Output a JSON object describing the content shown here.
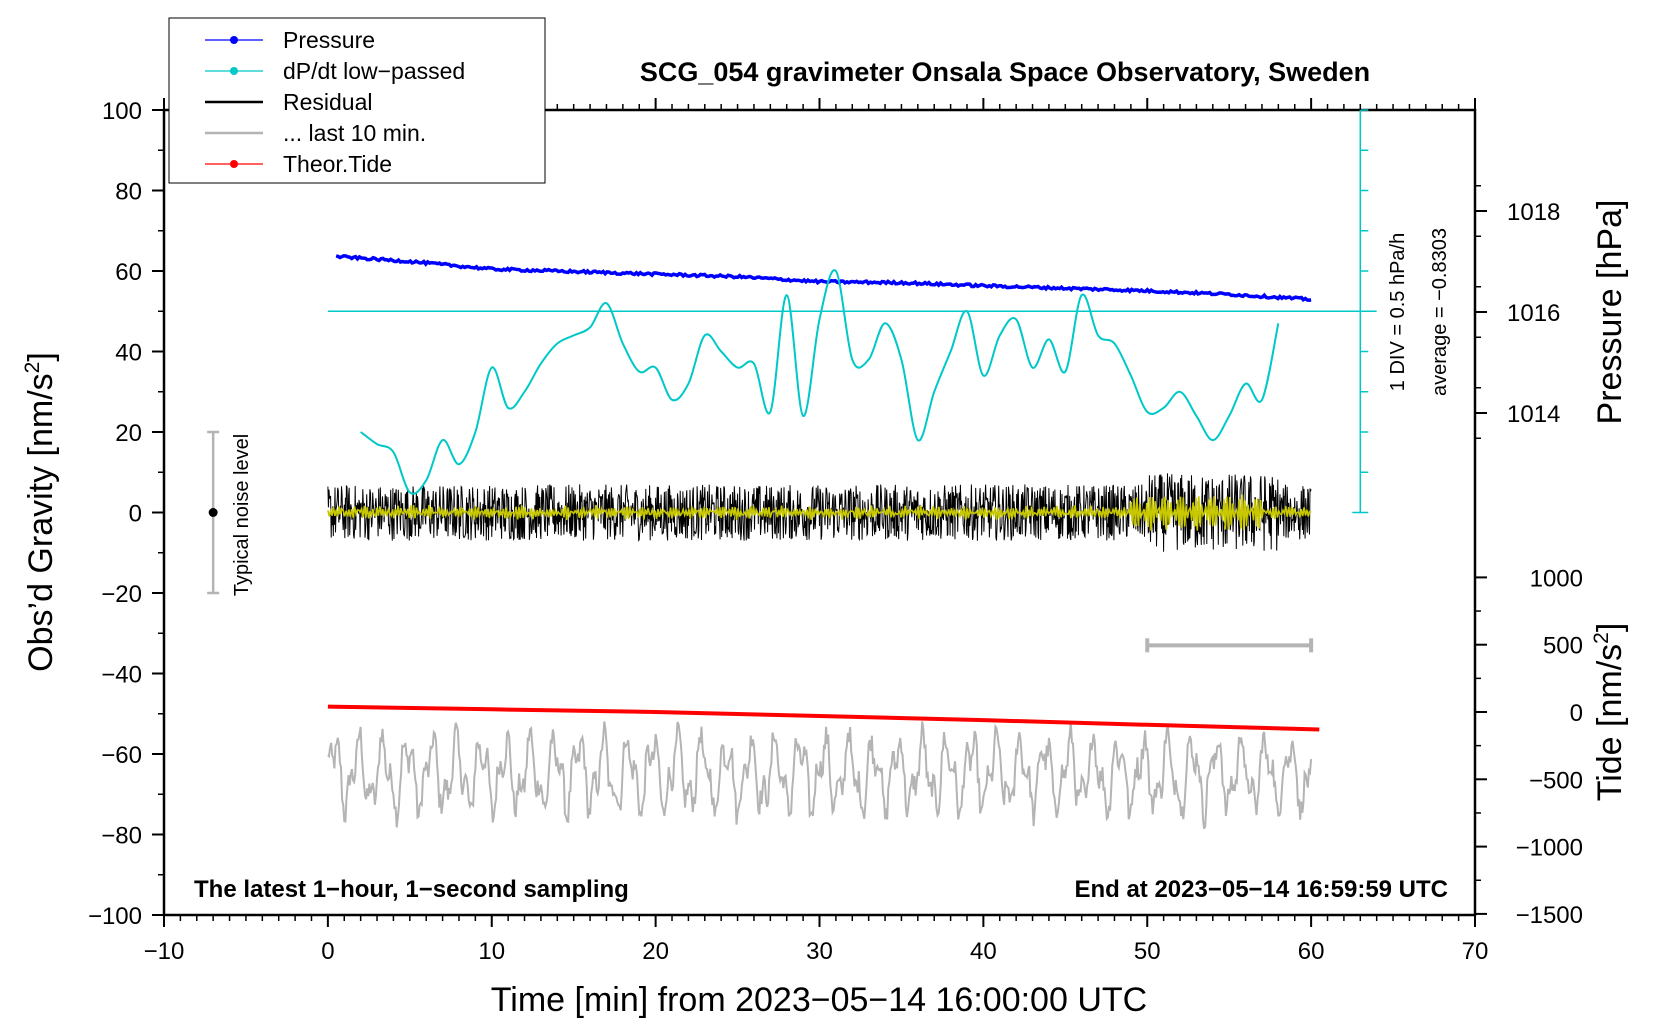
{
  "chart_data": {
    "type": "line",
    "title": "SCG_054 gravimeter Onsala Space Observatory, Sweden",
    "xlabel": "Time [min] from 2023−05−14 16:00:00 UTC",
    "ylabel": "Obs’d Gravity [nm/s2]",
    "ylabel_main": "Obs’d Gravity [nm/s",
    "ylabel_sup": "2",
    "ylabel_close": "]",
    "pressure_label": "Pressure [hPa]",
    "tide_label_main": "Tide [nm/s",
    "tide_label_sup": "2",
    "tide_label_close": "]",
    "xlim": [
      -10,
      70
    ],
    "ylim": [
      -100,
      100
    ],
    "x_ticks": [
      "−10",
      "0",
      "10",
      "20",
      "30",
      "40",
      "50",
      "60",
      "70"
    ],
    "y_ticks": [
      "100",
      "80",
      "60",
      "40",
      "20",
      "0",
      "−20",
      "−40",
      "−60",
      "−80",
      "−100"
    ],
    "pressure_ticks": [
      "1018",
      "1016",
      "1014"
    ],
    "tide_ticks": [
      "1000",
      "500",
      "0",
      "−500",
      "−1000",
      "−1500"
    ],
    "legend": [
      {
        "label": "Pressure",
        "color": "#0000ff",
        "marker": true
      },
      {
        "label": "dP/dt low−passed",
        "color": "#00c8c8",
        "marker": true
      },
      {
        "label": "Residual",
        "color": "#000000",
        "marker": false
      },
      {
        "label": "... last 10 min.",
        "color": "#b4b4b4",
        "marker": false
      },
      {
        "label": "Theor.Tide",
        "color": "#ff0000",
        "marker": true
      }
    ],
    "annotations": {
      "noise_label": "Typical noise level",
      "div_label": "1 DIV = 0.5 hPa/h",
      "average_label": "average = −0.8303",
      "bottom_left": "The latest 1−hour, 1−second sampling",
      "bottom_right": "End at 2023−05−14 16:59:59 UTC"
    },
    "colors": {
      "pressure": "#0000ff",
      "dpdt": "#00c8c8",
      "residual": "#000000",
      "residual_filtered": "#c8c800",
      "last10": "#b4b4b4",
      "tide": "#ff0000"
    },
    "series": [
      {
        "name": "Pressure",
        "axis": "pressure",
        "x": [
          0.5,
          5,
          10,
          15,
          20,
          25,
          30,
          35,
          40,
          45,
          50,
          55,
          60
        ],
        "y": [
          1017.1,
          1017.0,
          1016.85,
          1016.8,
          1016.75,
          1016.7,
          1016.6,
          1016.58,
          1016.52,
          1016.47,
          1016.42,
          1016.35,
          1016.25
        ]
      },
      {
        "name": "dP/dt low−passed",
        "axis": "gravity",
        "x": [
          2,
          3,
          4,
          5,
          6,
          7,
          8,
          9,
          10,
          11,
          12,
          13,
          14,
          15,
          16,
          17,
          18,
          19,
          20,
          21,
          22,
          23,
          24,
          25,
          26,
          27,
          28,
          29,
          30,
          31,
          32,
          33,
          34,
          35,
          36,
          37,
          38,
          39,
          40,
          41,
          42,
          43,
          44,
          45,
          46,
          47,
          48,
          49,
          50,
          51,
          52,
          53,
          54,
          55,
          56,
          57,
          58
        ],
        "y": [
          20,
          17,
          15,
          5,
          8,
          18,
          12,
          20,
          36,
          26,
          30,
          37,
          42,
          44,
          46,
          52,
          42,
          35,
          36,
          28,
          32,
          44,
          40,
          36,
          37,
          25,
          54,
          24,
          48,
          60,
          38,
          38,
          47,
          38,
          18,
          30,
          40,
          50,
          34,
          44,
          48,
          36,
          43,
          35,
          54,
          44,
          42,
          34,
          25,
          26,
          30,
          24,
          18,
          24,
          32,
          28,
          47
        ]
      },
      {
        "name": "Theor.Tide",
        "axis": "tide",
        "x": [
          0,
          10,
          20,
          30,
          40,
          50,
          60.5
        ],
        "y": [
          40,
          20,
          0,
          -30,
          -60,
          -95,
          -130
        ]
      }
    ],
    "residual": {
      "x_range": [
        0,
        60
      ],
      "amplitude": 7,
      "samples": 3600
    },
    "last10": {
      "x_range": [
        0,
        60
      ],
      "center": -65
    },
    "noise_bar": {
      "x": -7,
      "center": 0,
      "half_range": 20
    },
    "scale_bar": {
      "x_range": [
        50,
        60
      ],
      "y": -33
    },
    "dpdt_reference": {
      "level": 50,
      "x_range": [
        0,
        64
      ]
    },
    "div_scale": {
      "x": 63,
      "y_range": [
        0,
        100
      ],
      "divisions": 10
    }
  }
}
